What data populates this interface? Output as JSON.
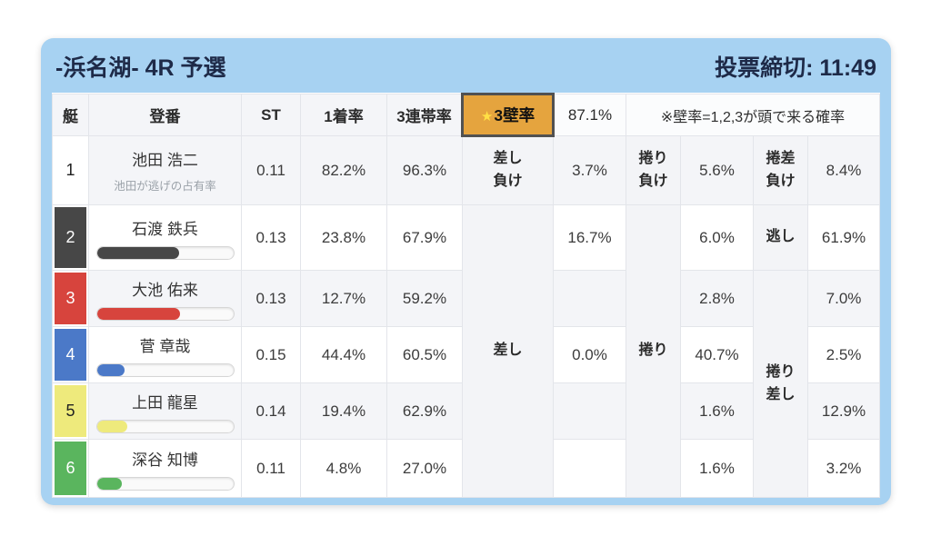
{
  "header": {
    "title": "-浜名湖- 4R 予選",
    "deadline": "投票締切: 11:49"
  },
  "table": {
    "columns": {
      "boat": "艇",
      "racer": "登番",
      "st": "ST",
      "win1": "1着率",
      "top3": "3連帯率",
      "wall_star": "★",
      "wall": "3壁率",
      "wall_value": "87.1%",
      "note": "※壁率=1,2,3が頭で来る確率"
    },
    "win_labels": {
      "row1": {
        "a": [
          "差し",
          "負け"
        ],
        "b": [
          "捲り",
          "負け"
        ],
        "c": [
          "捲差",
          "負け"
        ]
      },
      "merged": {
        "a": "差し",
        "b": "捲り",
        "c_row2": "逃し",
        "c": [
          "捲り",
          "差し"
        ]
      }
    },
    "rows": [
      {
        "num": "1",
        "name": "池田 浩二",
        "sub": "池田が逃げの占有率",
        "st": "0.11",
        "win1": "82.2%",
        "top3": "96.3%",
        "pctA": "3.7%",
        "pctB": "5.6%",
        "pctC": "8.4%"
      },
      {
        "num": "2",
        "name": "石渡 鉄兵",
        "st": "0.13",
        "win1": "23.8%",
        "top3": "67.9%",
        "pctA": "16.7%",
        "pctB": "6.0%",
        "pctC": "61.9%",
        "bar_percent": 60
      },
      {
        "num": "3",
        "name": "大池 佑来",
        "st": "0.13",
        "win1": "12.7%",
        "top3": "59.2%",
        "pctA": "",
        "pctB": "2.8%",
        "pctC": "7.0%",
        "bar_percent": 61
      },
      {
        "num": "4",
        "name": "菅 章哉",
        "st": "0.15",
        "win1": "44.4%",
        "top3": "60.5%",
        "pctA": "0.0%",
        "pctB": "40.7%",
        "pctC": "2.5%",
        "bar_percent": 20
      },
      {
        "num": "5",
        "name": "上田 龍星",
        "st": "0.14",
        "win1": "19.4%",
        "top3": "62.9%",
        "pctA": "",
        "pctB": "1.6%",
        "pctC": "12.9%",
        "bar_percent": 22
      },
      {
        "num": "6",
        "name": "深谷 知博",
        "st": "0.11",
        "win1": "4.8%",
        "top3": "27.0%",
        "pctA": "",
        "pctB": "1.6%",
        "pctC": "3.2%",
        "bar_percent": 18
      }
    ]
  },
  "colors": {
    "panel_blue": "#a7d2f2",
    "title_text": "#1e2a48",
    "header_bg": "#f4f5f8",
    "shade_row_bg": "#f4f5f8",
    "wall_highlight_bg": "#e5a43e",
    "wall_highlight_border": "#515151",
    "star_yellow": "#ffe045",
    "boats": {
      "1": "#ffffff",
      "2": "#474747",
      "3": "#d7443d",
      "4": "#4b79c8",
      "5": "#eeea7c",
      "6": "#5ab55e"
    },
    "boat_text": {
      "1": "#222222",
      "2": "#ffffff",
      "3": "#ffffff",
      "4": "#ffffff",
      "5": "#222222",
      "6": "#ffffff"
    }
  }
}
